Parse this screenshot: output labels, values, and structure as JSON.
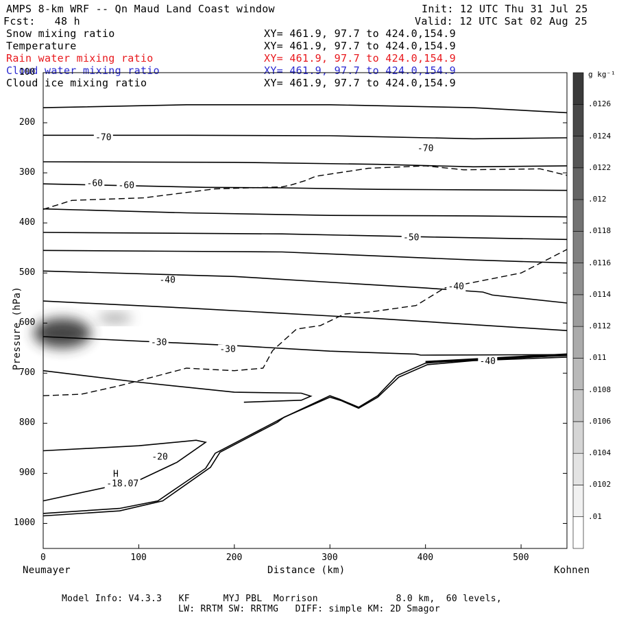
{
  "header": {
    "title": "AMPS 8-km WRF -- Qn Maud Land Coast window",
    "init": "Init: 12 UTC Thu 31 Jul 25",
    "fcst": "Fcst:   48 h",
    "valid": "Valid: 12 UTC Sat 02 Aug 25"
  },
  "fields": [
    {
      "name": "Snow mixing ratio",
      "xy": "XY= 461.9, 97.7 to 424.0,154.9",
      "color": "#000000"
    },
    {
      "name": "Temperature",
      "xy": "XY= 461.9, 97.7 to 424.0,154.9",
      "color": "#000000"
    },
    {
      "name": "Rain water mixing ratio",
      "xy": "XY= 461.9, 97.7 to 424.0,154.9",
      "color": "#e8171c"
    },
    {
      "name": "Cloud water mixing ratio",
      "xy": "XY= 461.9, 97.7 to 424.0,154.9",
      "color": "#2a2ad0"
    },
    {
      "name": "Cloud ice mixing ratio",
      "xy": "XY= 461.9, 97.7 to 424.0,154.9",
      "color": "#000000"
    }
  ],
  "footer": {
    "line1": "Model Info: V4.3.3   KF      MYJ PBL  Morrison              8.0 km,  60 levels,",
    "line2": "LW: RRTM SW: RRTMG   DIFF: simple KM: 2D Smagor"
  },
  "chart_data": {
    "type": "contour",
    "xlabel": "Distance (km)",
    "ylabel": "Pressure (hPa)",
    "x_left_label": "Neumayer",
    "x_right_label": "Kohnen",
    "xlim": [
      0,
      548
    ],
    "ylim": [
      1050,
      100
    ],
    "x_ticks": [
      0,
      100,
      200,
      300,
      400,
      500
    ],
    "y_ticks": [
      100,
      200,
      300,
      400,
      500,
      600,
      700,
      800,
      900,
      1000
    ],
    "colorbar": {
      "unit": "g kg⁻¹",
      "levels": [
        ".01",
        ".0102",
        ".0104",
        ".0106",
        ".0108",
        ".011",
        ".0112",
        ".0114",
        ".0116",
        ".0118",
        ".012",
        ".0122",
        ".0124",
        ".0126"
      ]
    },
    "contour_labels": [
      {
        "text": "-70",
        "x": 63,
        "p": 228
      },
      {
        "text": "-70",
        "x": 400,
        "p": 250
      },
      {
        "text": "-60",
        "x": 54,
        "p": 320
      },
      {
        "text": "-60",
        "x": 87,
        "p": 324
      },
      {
        "text": "-50",
        "x": 385,
        "p": 428
      },
      {
        "text": "-40",
        "x": 130,
        "p": 513
      },
      {
        "text": "-40",
        "x": 432,
        "p": 526
      },
      {
        "text": "-30",
        "x": 121,
        "p": 637
      },
      {
        "text": "-30",
        "x": 193,
        "p": 651
      },
      {
        "text": "-40",
        "x": 465,
        "p": 675
      },
      {
        "text": "-20",
        "x": 122,
        "p": 866
      },
      {
        "text": "H",
        "x": 76,
        "p": 900
      },
      {
        "text": "-18.07",
        "x": 83,
        "p": 919
      }
    ],
    "isotherms": [
      [
        [
          0,
          170
        ],
        [
          150,
          164
        ],
        [
          300,
          164
        ],
        [
          450,
          170
        ],
        [
          548,
          180
        ]
      ],
      [
        [
          0,
          225
        ],
        [
          150,
          225
        ],
        [
          300,
          226
        ],
        [
          450,
          232
        ],
        [
          548,
          230
        ]
      ],
      [
        [
          0,
          278
        ],
        [
          200,
          279
        ],
        [
          350,
          283
        ],
        [
          450,
          288
        ],
        [
          548,
          286
        ]
      ],
      [
        [
          0,
          322
        ],
        [
          170,
          329
        ],
        [
          250,
          330
        ],
        [
          350,
          333
        ],
        [
          450,
          334
        ],
        [
          548,
          335
        ]
      ],
      [
        [
          0,
          372
        ],
        [
          150,
          380
        ],
        [
          300,
          385
        ],
        [
          450,
          386
        ],
        [
          548,
          388
        ]
      ],
      [
        [
          0,
          419
        ],
        [
          250,
          422
        ],
        [
          400,
          428
        ],
        [
          548,
          433
        ]
      ],
      [
        [
          0,
          455
        ],
        [
          250,
          458
        ],
        [
          450,
          474
        ],
        [
          548,
          480
        ]
      ],
      [
        [
          0,
          496
        ],
        [
          200,
          507
        ],
        [
          400,
          530
        ],
        [
          460,
          538
        ],
        [
          470,
          544
        ],
        [
          548,
          560
        ]
      ],
      [
        [
          0,
          556
        ],
        [
          150,
          570
        ],
        [
          350,
          591
        ],
        [
          548,
          615
        ]
      ],
      [
        [
          0,
          627
        ],
        [
          200,
          645
        ],
        [
          300,
          656
        ],
        [
          390,
          662
        ],
        [
          395,
          664
        ],
        [
          548,
          663
        ]
      ],
      [
        [
          0,
          695
        ],
        [
          100,
          718
        ],
        [
          200,
          738
        ],
        [
          270,
          740
        ],
        [
          280,
          746
        ],
        [
          270,
          754
        ],
        [
          210,
          758
        ]
      ],
      [
        [
          0,
          855
        ],
        [
          100,
          845
        ],
        [
          160,
          834
        ],
        [
          170,
          838
        ],
        [
          140,
          878
        ],
        [
          100,
          914
        ],
        [
          0,
          955
        ]
      ]
    ],
    "dashed_isotherm": [
      [
        0,
        373
      ],
      [
        30,
        355
      ],
      [
        60,
        353
      ],
      [
        105,
        350
      ],
      [
        180,
        332
      ],
      [
        250,
        328
      ],
      [
        260,
        324
      ],
      [
        275,
        315
      ],
      [
        285,
        307
      ],
      [
        340,
        291
      ],
      [
        400,
        286
      ],
      [
        440,
        294
      ],
      [
        520,
        292
      ],
      [
        548,
        305
      ]
    ],
    "dashed_contour_2": [
      [
        0,
        745
      ],
      [
        40,
        742
      ],
      [
        80,
        725
      ],
      [
        120,
        705
      ],
      [
        150,
        690
      ],
      [
        200,
        695
      ],
      [
        230,
        690
      ],
      [
        240,
        655
      ],
      [
        265,
        612
      ],
      [
        290,
        605
      ],
      [
        315,
        582
      ],
      [
        345,
        577
      ],
      [
        390,
        565
      ],
      [
        420,
        530
      ],
      [
        460,
        515
      ],
      [
        500,
        500
      ],
      [
        548,
        453
      ]
    ],
    "terrain_lines": [
      [
        [
          0,
          980
        ],
        [
          80,
          970
        ],
        [
          120,
          955
        ],
        [
          170,
          890
        ],
        [
          180,
          860
        ],
        [
          210,
          830
        ],
        [
          240,
          800
        ],
        [
          250,
          790
        ],
        [
          300,
          745
        ],
        [
          310,
          752
        ],
        [
          330,
          768
        ],
        [
          350,
          745
        ],
        [
          370,
          705
        ],
        [
          400,
          680
        ],
        [
          450,
          672
        ],
        [
          548,
          665
        ]
      ],
      [
        [
          0,
          985
        ],
        [
          80,
          975
        ],
        [
          125,
          955
        ],
        [
          175,
          888
        ],
        [
          185,
          858
        ],
        [
          215,
          828
        ],
        [
          245,
          798
        ],
        [
          252,
          788
        ],
        [
          300,
          748
        ],
        [
          312,
          755
        ],
        [
          330,
          770
        ],
        [
          350,
          748
        ],
        [
          372,
          708
        ],
        [
          402,
          683
        ],
        [
          450,
          675
        ],
        [
          548,
          668
        ]
      ]
    ],
    "snow_mixing_blobs": [
      {
        "x": 20,
        "p": 620,
        "rx": 30,
        "rp": 30,
        "level": ".0122"
      },
      {
        "x": 75,
        "p": 590,
        "rx": 18,
        "rp": 8,
        "level": ".0108"
      }
    ]
  }
}
